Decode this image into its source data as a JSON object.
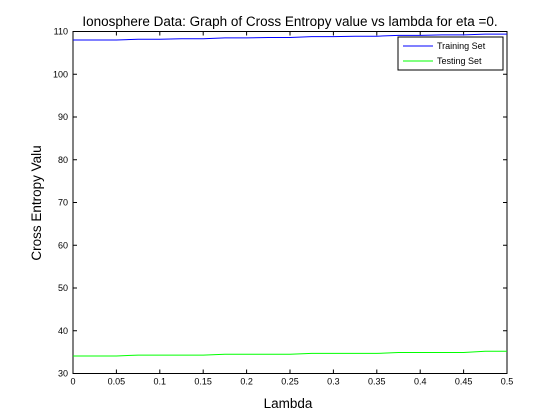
{
  "chart_data": {
    "type": "line",
    "title": "Ionosphere Data: Graph of Cross Entropy value vs lambda for eta =0.",
    "xlabel": "Lambda",
    "ylabel": "Cross Entropy Valu",
    "xlim": [
      0,
      0.5
    ],
    "ylim": [
      30,
      110
    ],
    "x_ticks": [
      "0",
      "0.05",
      "0.1",
      "0.15",
      "0.2",
      "0.25",
      "0.3",
      "0.35",
      "0.4",
      "0.45",
      "0.5"
    ],
    "y_ticks": [
      "30",
      "40",
      "50",
      "60",
      "70",
      "80",
      "90",
      "100",
      "110"
    ],
    "grid": false,
    "legend_position": "top-right",
    "x": [
      0,
      0.025,
      0.05,
      0.075,
      0.1,
      0.125,
      0.15,
      0.175,
      0.2,
      0.225,
      0.25,
      0.275,
      0.3,
      0.325,
      0.35,
      0.375,
      0.4,
      0.425,
      0.45,
      0.475,
      0.5
    ],
    "series": [
      {
        "name": "Training Set",
        "color": "#0000ff",
        "values": [
          108.0,
          108.0,
          108.0,
          108.2,
          108.2,
          108.3,
          108.3,
          108.5,
          108.5,
          108.6,
          108.6,
          108.8,
          108.8,
          108.9,
          108.9,
          109.1,
          109.1,
          109.2,
          109.2,
          109.4,
          109.4
        ]
      },
      {
        "name": "Testing Set",
        "color": "#00ff00",
        "values": [
          34.1,
          34.1,
          34.1,
          34.3,
          34.3,
          34.3,
          34.3,
          34.5,
          34.5,
          34.5,
          34.5,
          34.7,
          34.7,
          34.7,
          34.7,
          34.9,
          34.9,
          34.9,
          34.9,
          35.2,
          35.2
        ]
      }
    ]
  }
}
